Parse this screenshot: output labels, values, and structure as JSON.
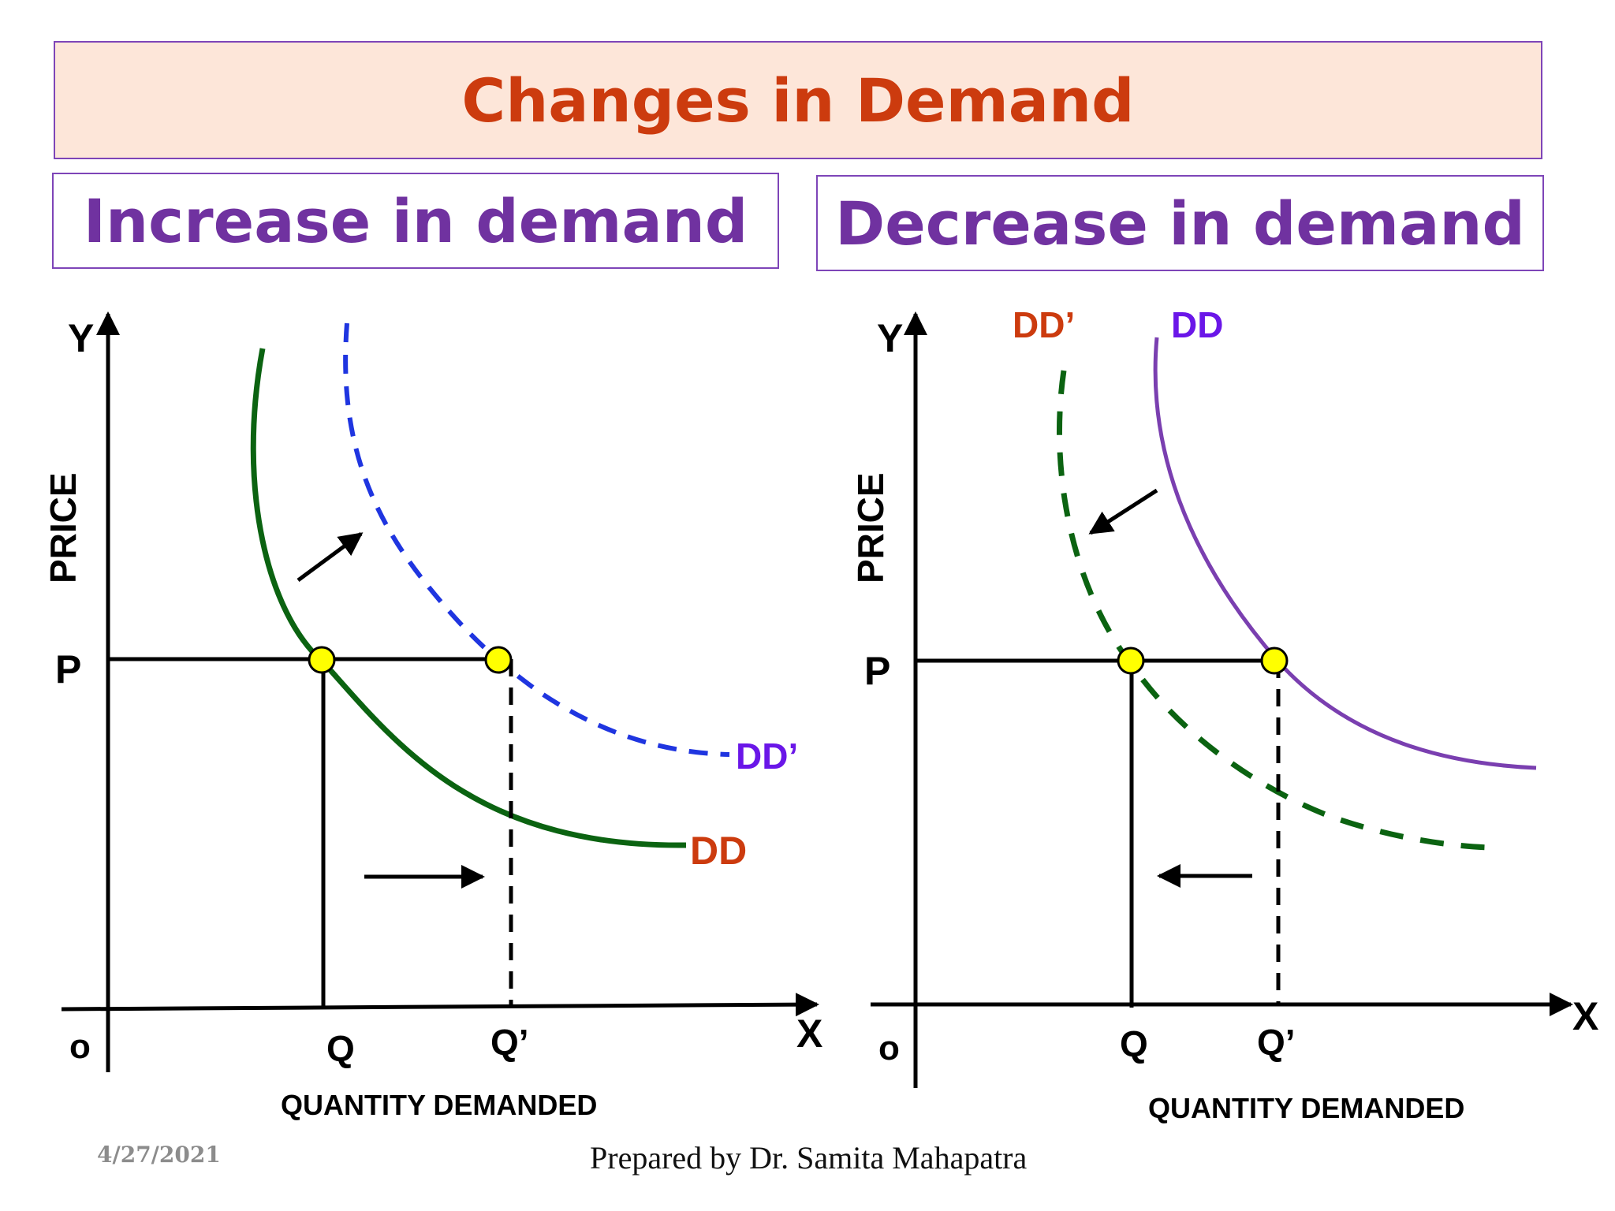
{
  "title": "Changes in Demand",
  "panels": {
    "increase": {
      "heading": "Increase in demand",
      "y_axis_letter": "Y",
      "x_axis_letter": "X",
      "origin": "o",
      "y_axis_label": "PRICE",
      "x_axis_label": "QUANTITY DEMANDED",
      "price_label": "P",
      "q_label": "Q",
      "q_prime_label": "Q’",
      "original_curve_label": "DD",
      "new_curve_label": "DD’"
    },
    "decrease": {
      "heading": "Decrease in demand",
      "y_axis_letter": "Y",
      "x_axis_letter": "X",
      "origin": "o",
      "y_axis_label": "PRICE",
      "x_axis_label": "QUANTITY DEMANDED",
      "price_label": "P",
      "q_label": "Q",
      "q_prime_label": "Q’",
      "original_curve_label": "DD",
      "new_curve_label": "DD’"
    }
  },
  "footer": {
    "date": "4/27/2021",
    "credit": "Prepared by Dr. Samita Mahapatra"
  },
  "colors": {
    "title": "#cc3b0e",
    "heading": "#7032a0",
    "title_bg": "#fde6d9",
    "border": "#7e45b8",
    "green_curve": "#0b6311",
    "blue_dashed": "#1f35e0",
    "purple_curve": "#7a3fb0",
    "label_orange": "#cc3b0e",
    "label_violet": "#6a16e8",
    "point_fill": "#ffff00"
  }
}
